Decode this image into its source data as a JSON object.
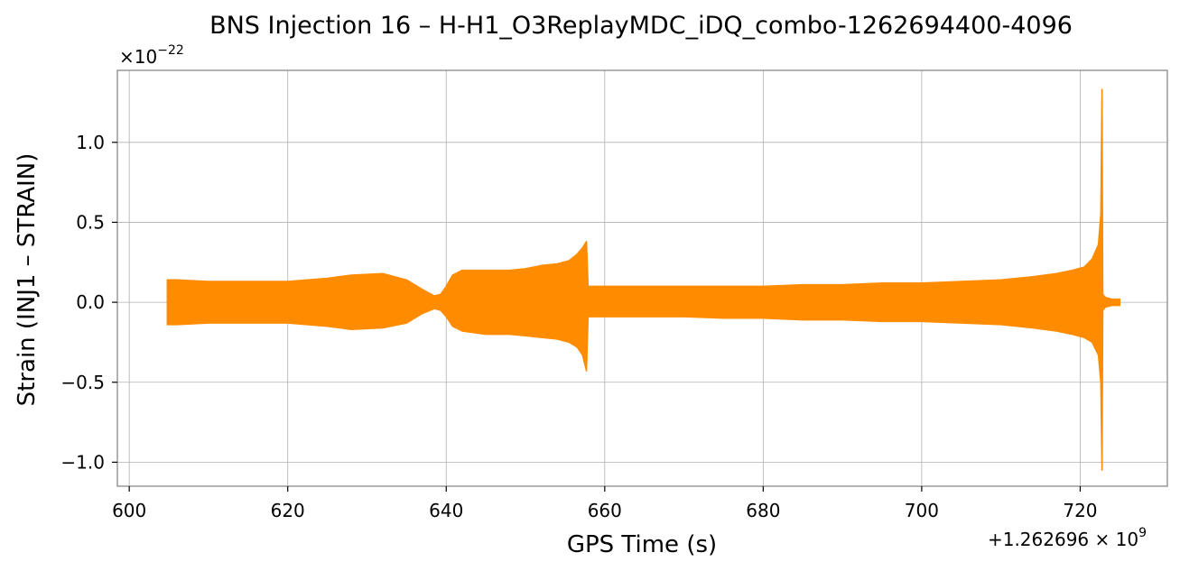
{
  "chart_data": {
    "type": "line",
    "title": "BNS Injection 16 – H-H1_O3ReplayMDC_iDQ_combo-1262694400-4096",
    "xlabel": "GPS Time (s)",
    "ylabel": "Strain (INJ1 – STRAIN)",
    "y_multiplier": {
      "base": "×10",
      "exponent": "−22"
    },
    "x_offset": {
      "prefix": "+1.262696 × 10",
      "exponent": "9"
    },
    "x_ticks": [
      600,
      620,
      640,
      660,
      680,
      700,
      720
    ],
    "x_tick_labels": [
      "600",
      "620",
      "640",
      "660",
      "680",
      "700",
      "720"
    ],
    "y_ticks": [
      -1.0,
      -0.5,
      0.0,
      0.5,
      1.0
    ],
    "y_tick_labels": [
      "−1.0",
      "−0.5",
      "0.0",
      "0.5",
      "1.0"
    ],
    "xlim": [
      598.5,
      731
    ],
    "ylim": [
      -1.15,
      1.45
    ],
    "grid": true,
    "color": "#ff8c00",
    "series": [
      {
        "envelope": {
          "x": [
            604.8,
            606,
            610,
            615,
            620,
            625,
            628,
            632,
            635,
            637,
            638.5,
            639.3,
            640,
            640.8,
            642,
            645,
            648,
            650,
            652,
            654,
            655.5,
            656.5,
            657.2,
            657.7,
            657.9,
            658.5,
            662,
            666,
            670,
            675,
            680,
            685,
            690,
            695,
            700,
            705,
            710,
            714,
            717,
            719,
            720.5,
            721.5,
            722.3,
            722.6,
            722.75,
            722.85,
            723.2,
            724,
            725
          ],
          "upper": [
            0.14,
            0.14,
            0.13,
            0.13,
            0.13,
            0.15,
            0.17,
            0.18,
            0.14,
            0.08,
            0.04,
            0.05,
            0.1,
            0.17,
            0.2,
            0.2,
            0.2,
            0.21,
            0.23,
            0.24,
            0.26,
            0.3,
            0.34,
            0.38,
            0.1,
            0.1,
            0.1,
            0.1,
            0.1,
            0.1,
            0.1,
            0.11,
            0.11,
            0.12,
            0.12,
            0.13,
            0.14,
            0.16,
            0.18,
            0.2,
            0.22,
            0.27,
            0.36,
            0.55,
            1.33,
            0.05,
            0.03,
            0.02,
            0.02
          ],
          "lower": [
            -0.14,
            -0.14,
            -0.13,
            -0.13,
            -0.13,
            -0.15,
            -0.17,
            -0.16,
            -0.13,
            -0.07,
            -0.04,
            -0.05,
            -0.09,
            -0.15,
            -0.18,
            -0.2,
            -0.2,
            -0.21,
            -0.22,
            -0.23,
            -0.25,
            -0.28,
            -0.33,
            -0.43,
            -0.09,
            -0.09,
            -0.09,
            -0.09,
            -0.09,
            -0.1,
            -0.1,
            -0.11,
            -0.11,
            -0.12,
            -0.12,
            -0.13,
            -0.14,
            -0.16,
            -0.18,
            -0.2,
            -0.22,
            -0.25,
            -0.33,
            -0.5,
            -1.05,
            -0.05,
            -0.03,
            -0.02,
            -0.02
          ]
        }
      }
    ]
  }
}
